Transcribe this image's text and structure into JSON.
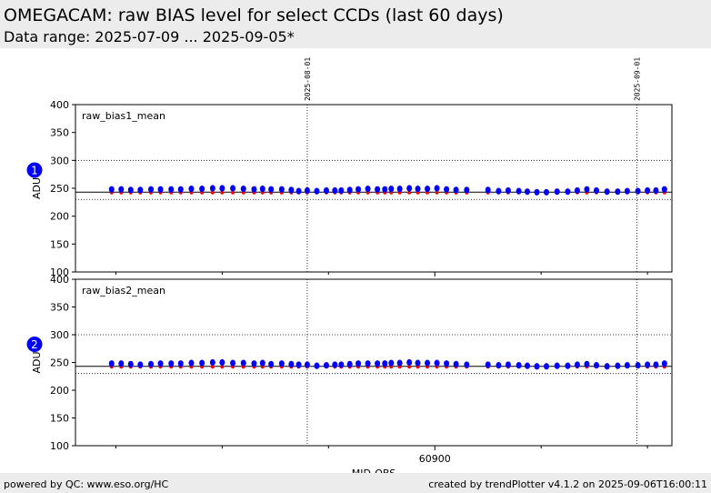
{
  "header": {
    "title": "OMEGACAM: raw BIAS level for select CCDs (last 60 days)",
    "subtitle": "Data range: 2025-07-09 ... 2025-09-05*"
  },
  "footer": {
    "left": "powered by QC: www.eso.org/HC",
    "right": "created by trendPlotter v4.1.2 on 2025-09-06T16:00:11"
  },
  "colors": {
    "points": "#0000ff",
    "reference": "#ff0000",
    "badge": "#0000ff"
  },
  "chart_data": {
    "type": "scatter",
    "xlabel": "MJD-OBS",
    "ylabel": "ADU",
    "xlim": [
      60866.2,
      60922.3
    ],
    "x_ticks": [
      {
        "value": 60900,
        "label": "60900"
      }
    ],
    "x_minor_ticks": [
      60870,
      60880,
      60890,
      60910,
      60920
    ],
    "date_markers": [
      {
        "x": 60888.0,
        "label": "2025-08-01"
      },
      {
        "x": 60919.0,
        "label": "2025-09-01"
      }
    ],
    "panels": [
      {
        "badge": "1",
        "label": "raw_bias1_mean",
        "ylim": [
          100,
          400
        ],
        "yticks": [
          100,
          150,
          200,
          250,
          300,
          350,
          400
        ],
        "ref_line": 243,
        "thresholds": [
          300,
          230
        ],
        "x": [
          60869.6,
          60870.5,
          60871.4,
          60872.3,
          60873.3,
          60874.2,
          60875.2,
          60876.1,
          60877.1,
          60878.1,
          60879.1,
          60880.0,
          60881.0,
          60882.0,
          60883.0,
          60883.8,
          60884.6,
          60885.6,
          60886.5,
          60887.2,
          60888.0,
          60888.9,
          60889.8,
          60890.6,
          60891.2,
          60892.0,
          60892.8,
          60893.7,
          60894.6,
          60895.3,
          60895.9,
          60896.7,
          60897.6,
          60898.4,
          60899.3,
          60900.2,
          60901.1,
          60902.0,
          60903.0,
          60905.0,
          60906.0,
          60906.9,
          60907.9,
          60908.7,
          60909.6,
          60910.5,
          60911.5,
          60912.5,
          60913.4,
          60914.3,
          60915.2,
          60916.2,
          60917.2,
          60918.1,
          60919.1,
          60920.0,
          60920.8,
          60921.6
        ],
        "y": [
          248,
          248,
          247,
          247,
          248,
          248,
          248,
          248,
          249,
          249,
          250,
          250,
          250,
          249,
          248,
          249,
          248,
          248,
          247,
          245,
          246,
          245,
          246,
          246,
          246,
          247,
          248,
          249,
          248,
          248,
          249,
          249,
          250,
          249,
          249,
          250,
          248,
          247,
          247,
          247,
          245,
          246,
          245,
          244,
          243,
          243,
          244,
          244,
          246,
          248,
          246,
          244,
          244,
          245,
          245,
          246,
          246,
          248
        ]
      },
      {
        "badge": "2",
        "label": "raw_bias2_mean",
        "ylim": [
          100,
          400
        ],
        "yticks": [
          100,
          150,
          200,
          250,
          300,
          350,
          400
        ],
        "ref_line": 243,
        "thresholds": [
          300,
          230
        ],
        "x": [
          60869.6,
          60870.5,
          60871.4,
          60872.3,
          60873.3,
          60874.2,
          60875.2,
          60876.1,
          60877.1,
          60878.1,
          60879.1,
          60880.0,
          60881.0,
          60882.0,
          60883.0,
          60883.8,
          60884.6,
          60885.6,
          60886.5,
          60887.2,
          60888.0,
          60888.9,
          60889.8,
          60890.6,
          60891.2,
          60892.0,
          60892.8,
          60893.7,
          60894.6,
          60895.3,
          60895.9,
          60896.7,
          60897.6,
          60898.4,
          60899.3,
          60900.2,
          60901.1,
          60902.0,
          60903.0,
          60905.0,
          60906.0,
          60906.9,
          60907.9,
          60908.7,
          60909.6,
          60910.5,
          60911.5,
          60912.5,
          60913.4,
          60914.3,
          60915.2,
          60916.2,
          60917.2,
          60918.1,
          60919.1,
          60920.0,
          60920.8,
          60921.6
        ],
        "y": [
          248,
          248,
          247,
          246,
          247,
          248,
          248,
          248,
          249,
          249,
          250,
          250,
          249,
          249,
          248,
          249,
          247,
          248,
          247,
          246,
          246,
          244,
          245,
          246,
          246,
          247,
          248,
          248,
          248,
          248,
          249,
          249,
          250,
          249,
          249,
          249,
          248,
          247,
          246,
          246,
          245,
          246,
          245,
          244,
          243,
          243,
          244,
          244,
          246,
          247,
          245,
          243,
          244,
          245,
          245,
          246,
          246,
          248
        ]
      }
    ]
  }
}
